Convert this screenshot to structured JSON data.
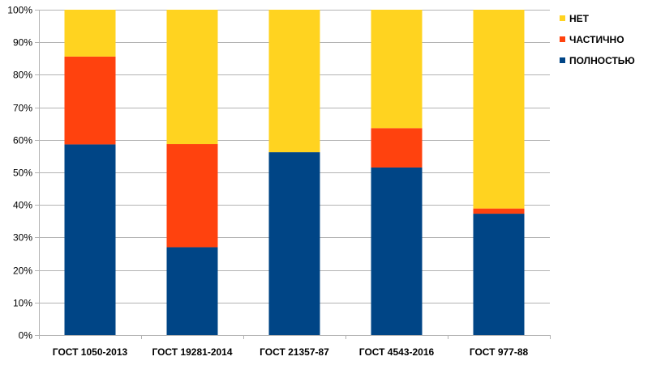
{
  "chart_data": {
    "type": "bar",
    "stacked": "percent",
    "title": "",
    "xlabel": "",
    "ylabel": "",
    "ylim": [
      0,
      100
    ],
    "yticks": [
      0,
      10,
      20,
      30,
      40,
      50,
      60,
      70,
      80,
      90,
      100
    ],
    "ytick_labels": [
      "0%",
      "10%",
      "20%",
      "30%",
      "40%",
      "50%",
      "60%",
      "70%",
      "80%",
      "90%",
      "100%"
    ],
    "grid": true,
    "legend_position": "top-right",
    "categories": [
      "ГОСТ 1050-2013",
      "ГОСТ 19281-2014",
      "ГОСТ 21357-87",
      "ГОСТ 4543-2016",
      "ГОСТ 977-88"
    ],
    "series": [
      {
        "name": "ПОЛНОСТЬЮ",
        "color": "#004586",
        "values": [
          58.6,
          27.0,
          56.2,
          51.5,
          37.3
        ]
      },
      {
        "name": "ЧАСТИЧНО",
        "color": "#FF420E",
        "values": [
          27.0,
          31.7,
          0.0,
          12.1,
          1.6
        ]
      },
      {
        "name": "НЕТ",
        "color": "#FFD320",
        "values": [
          14.4,
          41.3,
          43.8,
          36.4,
          61.1
        ]
      }
    ],
    "legend_order": [
      "НЕТ",
      "ЧАСТИЧНО",
      "ПОЛНОСТЬЮ"
    ]
  }
}
